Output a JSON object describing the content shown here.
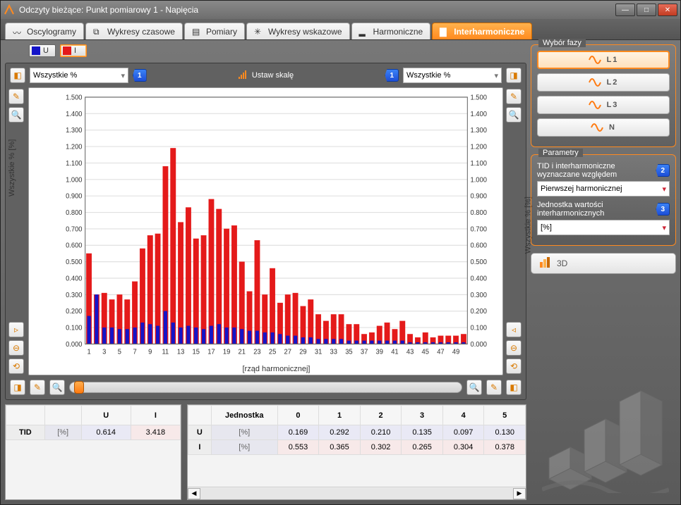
{
  "window": {
    "title": "Odczyty bieżące: Punkt pomiarowy 1 - Napięcia"
  },
  "tabs": [
    {
      "label": "Oscylogramy",
      "active": false
    },
    {
      "label": "Wykresy czasowe",
      "active": false
    },
    {
      "label": "Pomiary",
      "active": false
    },
    {
      "label": "Wykresy wskazowe",
      "active": false
    },
    {
      "label": "Harmoniczne",
      "active": false
    },
    {
      "label": "Interharmoniczne",
      "active": true
    }
  ],
  "toggle": {
    "U": {
      "color": "#1414c8",
      "label": "U",
      "active": false
    },
    "I": {
      "color": "#e41a1a",
      "label": "I",
      "active": true
    }
  },
  "left_dd": {
    "label": "Wszystkie %"
  },
  "right_dd": {
    "label": "Wszystkie %"
  },
  "badge1": "1",
  "badge2": "1",
  "scale_label": "Ustaw skalę",
  "chart": {
    "type": "bar",
    "ylabel": "Wszystkie % [%]",
    "xlabel": "[rząd harmonicznej]",
    "ylim": [
      0,
      1.5
    ],
    "ytick_step": 0.1,
    "xticks": [
      1,
      3,
      5,
      7,
      9,
      11,
      13,
      15,
      17,
      19,
      21,
      23,
      25,
      27,
      29,
      31,
      33,
      35,
      37,
      39,
      41,
      43,
      45,
      47,
      49
    ],
    "grid_color": "#e0e0e0",
    "series": [
      {
        "name": "I",
        "color": "#e41a1a",
        "values": [
          0.55,
          0.3,
          0.31,
          0.27,
          0.3,
          0.27,
          0.38,
          0.58,
          0.66,
          0.67,
          1.08,
          1.19,
          0.74,
          0.83,
          0.64,
          0.66,
          0.88,
          0.82,
          0.7,
          0.72,
          0.5,
          0.32,
          0.63,
          0.3,
          0.46,
          0.25,
          0.3,
          0.31,
          0.23,
          0.27,
          0.18,
          0.14,
          0.18,
          0.18,
          0.12,
          0.12,
          0.06,
          0.07,
          0.11,
          0.13,
          0.09,
          0.14,
          0.06,
          0.04,
          0.07,
          0.04,
          0.05,
          0.05,
          0.05,
          0.06
        ]
      },
      {
        "name": "U",
        "color": "#1414c8",
        "values": [
          0.17,
          0.3,
          0.1,
          0.1,
          0.09,
          0.09,
          0.1,
          0.13,
          0.12,
          0.11,
          0.2,
          0.13,
          0.1,
          0.11,
          0.1,
          0.09,
          0.11,
          0.12,
          0.1,
          0.1,
          0.09,
          0.08,
          0.08,
          0.07,
          0.07,
          0.06,
          0.05,
          0.05,
          0.04,
          0.04,
          0.03,
          0.03,
          0.03,
          0.03,
          0.02,
          0.02,
          0.02,
          0.02,
          0.02,
          0.02,
          0.02,
          0.02,
          0.01,
          0.01,
          0.01,
          0.01,
          0.01,
          0.01,
          0.01,
          0.01
        ]
      }
    ],
    "bg": "#ffffff"
  },
  "tid_table": {
    "cols": [
      "",
      "",
      "U",
      "I"
    ],
    "row": {
      "label": "TID",
      "unit": "[%]",
      "U": "0.614",
      "I": "3.418"
    }
  },
  "harm_table": {
    "cols": [
      "",
      "Jednostka",
      "0",
      "1",
      "2",
      "3",
      "4",
      "5"
    ],
    "rows": [
      {
        "label": "U",
        "unit": "[%]",
        "vals": [
          "0.169",
          "0.292",
          "0.210",
          "0.135",
          "0.097",
          "0.130"
        ]
      },
      {
        "label": "I",
        "unit": "[%]",
        "vals": [
          "0.553",
          "0.365",
          "0.302",
          "0.265",
          "0.304",
          "0.378"
        ]
      }
    ]
  },
  "phase_group": {
    "legend": "Wybór fazy",
    "items": [
      {
        "label": "L1",
        "active": true
      },
      {
        "label": "L2"
      },
      {
        "label": "L3"
      },
      {
        "label": "N"
      }
    ],
    "wave_color": "#ff7a10"
  },
  "param_group": {
    "legend": "Parametry",
    "p1": {
      "label": "TID i interharmoniczne wyznaczane względem",
      "badge": "2",
      "value": "Pierwszej harmonicznej"
    },
    "p2": {
      "label": "Jednostka wartości interharmonicznych",
      "badge": "3",
      "value": "[%]"
    }
  },
  "btn3d": "3D"
}
